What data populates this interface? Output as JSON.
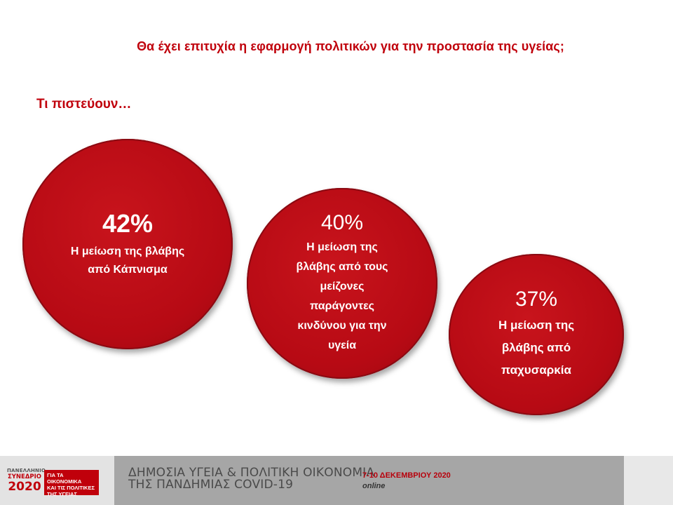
{
  "title": "Θα έχει επιτυχία η εφαρμογή πολιτικών για την προστασία της υγείας;",
  "subtitle": "Τι πιστεύουν…",
  "bubbles": [
    {
      "value": "42%",
      "lines": [
        "Η μείωση της βλάβης",
        "από Κάπνισμα"
      ]
    },
    {
      "value": "40%",
      "lines": [
        "Η μείωση της",
        "βλάβης από τους",
        "μείζονες",
        "παράγοντες",
        "κινδύνου για την",
        "υγεία"
      ]
    },
    {
      "value": "37%",
      "lines": [
        "Η μείωση της",
        "βλάβης από",
        "παχυσαρκία"
      ]
    }
  ],
  "colors": {
    "accent": "#c0000b",
    "bubble": "#b70a14",
    "footer_band": "#a6a6a6"
  },
  "footer": {
    "logo_line1": "ΠΑΝΕΛΛΗΝΙΟ",
    "logo_line2": "ΣΥΝΕΔΡΙΟ",
    "logo_year": "2020",
    "logo_box": [
      "ΓΙΑ ΤΑ ΟΙΚΟΝΟΜΙΚΑ",
      "ΚΑΙ ΤΙΣ ΠΟΛΙΤΙΚΕΣ",
      "ΤΗΣ ΥΓΕΙΑΣ"
    ],
    "conference_line1": "ΔΗΜΟΣΙΑ ΥΓΕΙΑ & ΠΟΛΙΤΙΚΗ ΟΙΚΟΝΟΜΙΑ",
    "conference_line2": "ΤΗΣ ΠΑΝΔΗΜΙΑΣ COVID-19",
    "dates": "7-10 ΔΕΚΕΜΒΡΙΟΥ 2020",
    "mode": "online"
  }
}
